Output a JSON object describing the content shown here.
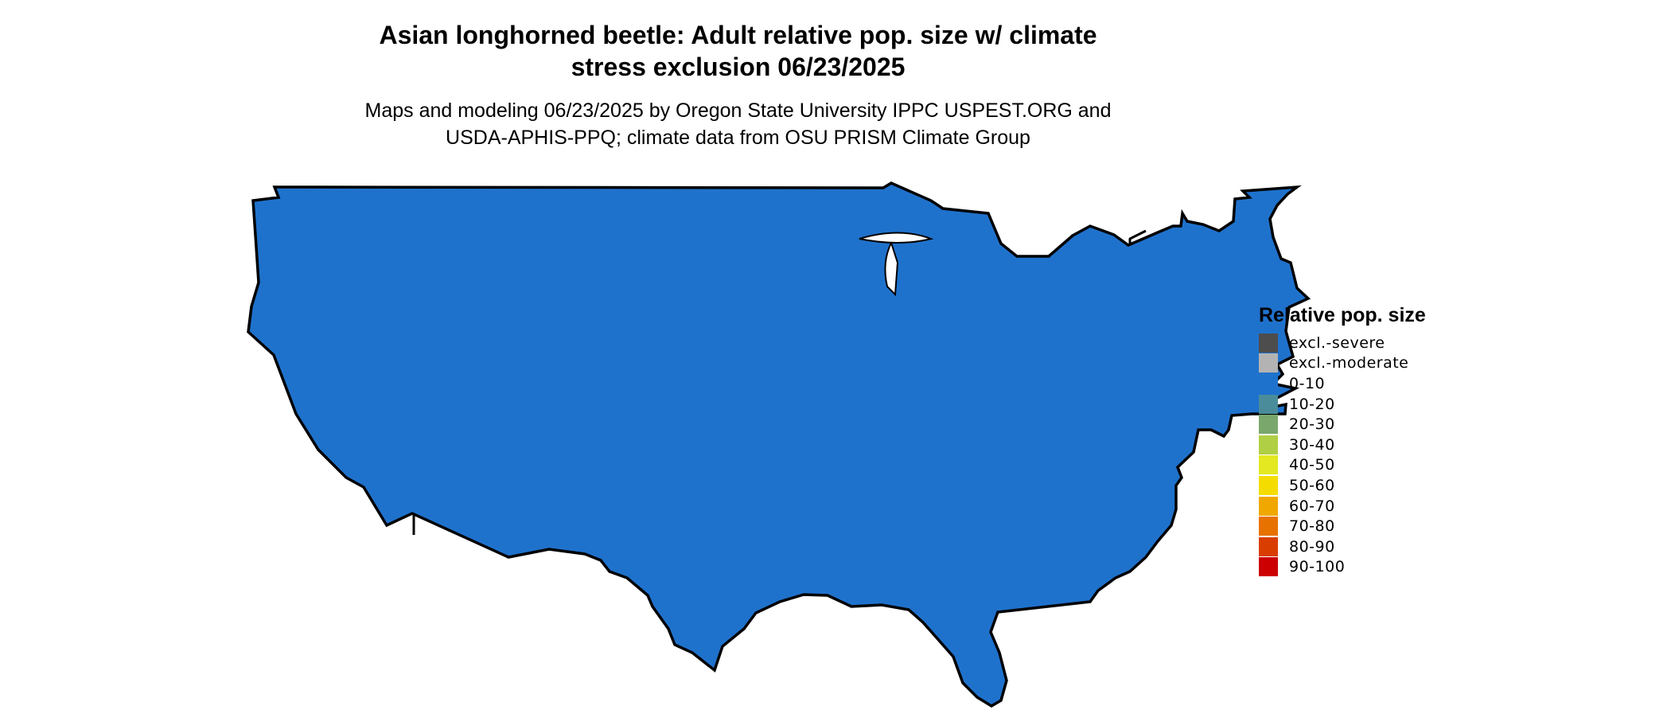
{
  "title": {
    "line1": "Asian longhorned beetle: Adult relative pop. size w/ climate",
    "line2": "stress exclusion 06/23/2025"
  },
  "subtitle": {
    "line1": "Maps and modeling 06/23/2025 by Oregon State University IPPC USPEST.ORG and",
    "line2": "USDA-APHIS-PPQ; climate data from OSU PRISM Climate Group"
  },
  "legend": {
    "title": "Relative pop. size",
    "items": [
      {
        "label": "excl.-severe",
        "color": "#4d4d4d"
      },
      {
        "label": "excl.-moderate",
        "color": "#b3b3b3"
      },
      {
        "label": "0-10",
        "color": "#1f72cc"
      },
      {
        "label": "10-20",
        "color": "#4a8c9a"
      },
      {
        "label": "20-30",
        "color": "#7aa86c"
      },
      {
        "label": "30-40",
        "color": "#b0cf44"
      },
      {
        "label": "40-50",
        "color": "#e3e820"
      },
      {
        "label": "50-60",
        "color": "#f5dc00"
      },
      {
        "label": "60-70",
        "color": "#f0a800"
      },
      {
        "label": "70-80",
        "color": "#e87200"
      },
      {
        "label": "80-90",
        "color": "#d93e00"
      },
      {
        "label": "90-100",
        "color": "#cc0000"
      }
    ]
  },
  "map": {
    "region": "Contiguous United States",
    "base_color": "#1f72cc",
    "border_color": "#000000"
  }
}
